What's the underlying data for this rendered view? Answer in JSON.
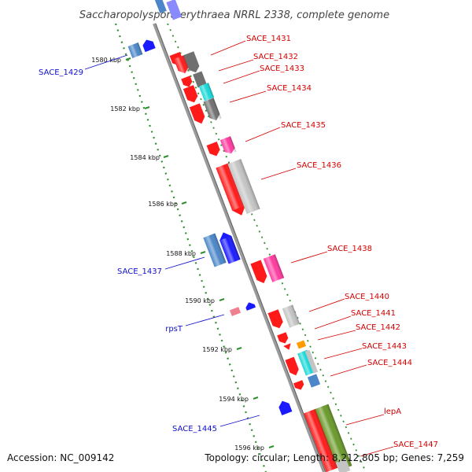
{
  "title": "Saccharopolyspora erythraea NRRL 2338, complete genome",
  "footer": {
    "accession": "Accession: NC_009142",
    "summary": "Topology: circular; Length: 8,212,805 bp; Genes: 7,259"
  },
  "axis_ticks": [
    "1580 kbp",
    "1582 kbp",
    "1584 kbp",
    "1586 kbp",
    "1588 kbp",
    "1590 kbp",
    "1592 kbp",
    "1594 kbp",
    "1596 kbp"
  ],
  "labels_right": [
    "SACE_1431",
    "SACE_1432",
    "SACE_1433",
    "SACE_1434",
    "SACE_1435",
    "SACE_1436",
    "SACE_1438",
    "SACE_1440",
    "SACE_1441",
    "SACE_1442",
    "SACE_1443",
    "SACE_1444",
    "lepA",
    "SACE_1447"
  ],
  "labels_left": [
    "SACE_1429",
    "SACE_1437",
    "rpsT",
    "SACE_1445"
  ],
  "colors": {
    "red": "#ff1a1a",
    "blue": "#1a1aff",
    "steel_blue": "#4a86c8",
    "dark_gray": "#707070",
    "light_gray": "#c4c4c4",
    "magenta": "#ff3aa0",
    "cyan": "#18d8d8",
    "orange": "#ff9a00",
    "olive": "#6a9a2a",
    "pink": "#f08090",
    "label_red": "#d50000",
    "label_blue": "#1010c8",
    "tick_green": "#2f8f2f"
  }
}
